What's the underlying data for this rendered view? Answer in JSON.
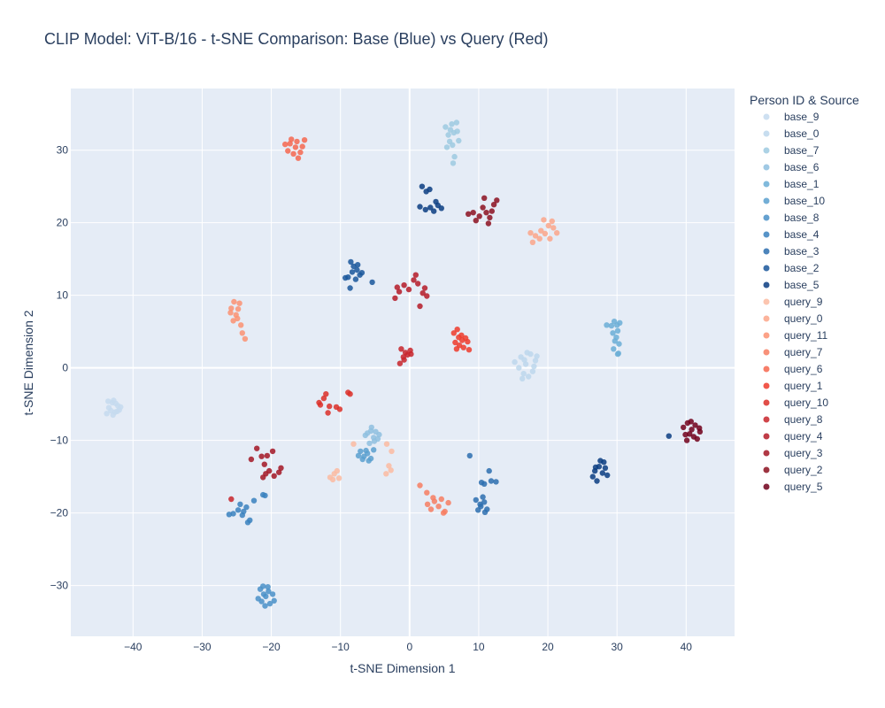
{
  "chart_data": {
    "type": "scatter",
    "title": "CLIP Model: ViT-B/16 - t-SNE Comparison: Base (Blue) vs Query (Red)",
    "xlabel": "t-SNE Dimension 1",
    "ylabel": "t-SNE Dimension 2",
    "xlim": [
      -49,
      47
    ],
    "ylim": [
      -37,
      38.5
    ],
    "xticks": [
      -40,
      -30,
      -20,
      -10,
      0,
      10,
      20,
      30,
      40
    ],
    "xtick_labels": [
      "−40",
      "−30",
      "−20",
      "−10",
      "0",
      "10",
      "20",
      "30",
      "40"
    ],
    "yticks": [
      -30,
      -20,
      -10,
      0,
      10,
      20,
      30
    ],
    "ytick_labels": [
      "−30",
      "−20",
      "−10",
      "0",
      "10",
      "20",
      "30"
    ],
    "grid": true,
    "plot_bg": "#e5ecf6",
    "legend_title": "Person ID & Source",
    "legend_position": "right",
    "series": [
      {
        "name": "base_9",
        "color": "#c6dbef",
        "points": [
          [
            -43.5,
            -5.5
          ],
          [
            -43,
            -4.8
          ],
          [
            -42.6,
            -6.1
          ],
          [
            -42.2,
            -5.2
          ],
          [
            -43.8,
            -6.3
          ],
          [
            -42.8,
            -4.5
          ],
          [
            -42,
            -5.8
          ],
          [
            -43.2,
            -5.9
          ],
          [
            -42.5,
            -4.9
          ],
          [
            -41.8,
            -5.4
          ],
          [
            -43.6,
            -4.6
          ],
          [
            -42.9,
            -6.5
          ],
          [
            -42.3,
            -6
          ]
        ]
      },
      {
        "name": "base_0",
        "color": "#bdd7ec",
        "points": [
          [
            15.2,
            0.8
          ],
          [
            16.1,
            1.5
          ],
          [
            16.8,
            0.5
          ],
          [
            17.5,
            1.9
          ],
          [
            18,
            0.2
          ],
          [
            16.5,
            -0.8
          ],
          [
            17.2,
            -1.2
          ],
          [
            18.2,
            1
          ],
          [
            15.8,
            0
          ],
          [
            17,
            2.1
          ],
          [
            16.3,
            -1.5
          ],
          [
            17.8,
            -0.5
          ],
          [
            18.4,
            1.6
          ],
          [
            16.6,
            1.1
          ]
        ]
      },
      {
        "name": "base_7",
        "color": "#9ecae1",
        "points": [
          [
            5.2,
            33.2
          ],
          [
            5.6,
            32.1
          ],
          [
            6.1,
            33.6
          ],
          [
            5.8,
            31.2
          ],
          [
            6.4,
            32.4
          ],
          [
            6.9,
            32.6
          ],
          [
            7.1,
            31.3
          ],
          [
            6.2,
            30.7
          ],
          [
            6.5,
            29.1
          ],
          [
            6.3,
            28.2
          ],
          [
            5.4,
            30.4
          ],
          [
            6.8,
            33.8
          ],
          [
            5.9,
            32.8
          ]
        ]
      },
      {
        "name": "base_6",
        "color": "#8fbfdf",
        "points": [
          [
            -5.5,
            -8.2
          ],
          [
            -6.1,
            -9
          ],
          [
            -5.2,
            -9.6
          ],
          [
            -4.6,
            -9.8
          ],
          [
            -5.8,
            -10.4
          ],
          [
            -4.9,
            -8.8
          ],
          [
            -6.4,
            -9.3
          ],
          [
            -5.1,
            -10.1
          ],
          [
            -4.4,
            -9.2
          ],
          [
            -5.6,
            -8.7
          ]
        ]
      },
      {
        "name": "base_1",
        "color": "#6baed6",
        "points": [
          [
            29.2,
            5.8
          ],
          [
            29.6,
            6.4
          ],
          [
            30.1,
            5.1
          ],
          [
            29.9,
            4.2
          ],
          [
            30.3,
            3.3
          ],
          [
            29.5,
            2.6
          ],
          [
            30.2,
            2
          ],
          [
            29.4,
            4.8
          ],
          [
            30,
            5.9
          ],
          [
            30.4,
            6.2
          ],
          [
            28.5,
            5.9
          ],
          [
            29.7,
            3.7
          ],
          [
            30.1,
            1.9
          ]
        ]
      },
      {
        "name": "base_10",
        "color": "#5aa0cf",
        "points": [
          [
            -7.1,
            -11.5
          ],
          [
            -6.6,
            -12.2
          ],
          [
            -6.1,
            -11.8
          ],
          [
            -5.6,
            -12.5
          ],
          [
            -7.4,
            -12.1
          ],
          [
            -5.2,
            -11.3
          ],
          [
            -6.8,
            -12.6
          ],
          [
            -6.3,
            -11.4
          ],
          [
            -5.9,
            -12.8
          ]
        ]
      },
      {
        "name": "base_8",
        "color": "#4a90c8",
        "points": [
          [
            -21.6,
            -30.5
          ],
          [
            -21.1,
            -31.2
          ],
          [
            -20.5,
            -30.2
          ],
          [
            -21.9,
            -31.8
          ],
          [
            -20.2,
            -32.5
          ],
          [
            -20.8,
            -31.5
          ],
          [
            -21.4,
            -32.2
          ],
          [
            -19.8,
            -31.2
          ],
          [
            -20.4,
            -30.8
          ],
          [
            -21.2,
            -30.1
          ],
          [
            -19.6,
            -32.1
          ],
          [
            -20.9,
            -32.8
          ]
        ]
      },
      {
        "name": "base_4",
        "color": "#3a81be",
        "points": [
          [
            -25.5,
            -20.1
          ],
          [
            -24.8,
            -19.6
          ],
          [
            -24.2,
            -20.3
          ],
          [
            -23.6,
            -19.2
          ],
          [
            -24.5,
            -18.8
          ],
          [
            -22.5,
            -18.3
          ],
          [
            -23.1,
            -21
          ],
          [
            -23.4,
            -21.3
          ],
          [
            -21.2,
            -17.5
          ],
          [
            -20.9,
            -17.6
          ],
          [
            -26.1,
            -20.2
          ],
          [
            -24,
            -19.8
          ]
        ]
      },
      {
        "name": "base_3",
        "color": "#2d6faf",
        "points": [
          [
            9.6,
            -18.2
          ],
          [
            10.3,
            -19.1
          ],
          [
            10.8,
            -18.5
          ],
          [
            11.2,
            -19.5
          ],
          [
            9.9,
            -19.6
          ],
          [
            10.6,
            -17.8
          ],
          [
            10.2,
            -18.8
          ],
          [
            11.5,
            -14.2
          ],
          [
            12.5,
            -15.7
          ],
          [
            10.8,
            -16
          ],
          [
            10.4,
            -15.8
          ],
          [
            8.7,
            -12.1
          ],
          [
            11.8,
            -15.6
          ],
          [
            10.9,
            -19.9
          ]
        ]
      },
      {
        "name": "base_2",
        "color": "#1a579b",
        "points": [
          [
            -8.5,
            14.6
          ],
          [
            -8.1,
            14
          ],
          [
            -7.6,
            13.5
          ],
          [
            -7.2,
            12.8
          ],
          [
            -8.9,
            12.5
          ],
          [
            -9.3,
            12.4
          ],
          [
            -7.8,
            12.2
          ],
          [
            -8.3,
            13.2
          ],
          [
            -6.9,
            13.1
          ],
          [
            -8.6,
            11
          ],
          [
            -5.4,
            11.8
          ],
          [
            -7.5,
            14.2
          ]
        ]
      },
      {
        "name": "base_5",
        "color": "#0b3d81",
        "points": [
          [
            1.8,
            25
          ],
          [
            2.4,
            24.3
          ],
          [
            2.9,
            24.6
          ],
          [
            1.5,
            22.2
          ],
          [
            2.3,
            21.8
          ],
          [
            3,
            22.1
          ],
          [
            3.5,
            21.6
          ],
          [
            4.1,
            22.4
          ],
          [
            4.6,
            22
          ],
          [
            3.8,
            22.9
          ],
          [
            26.8,
            -14.2
          ],
          [
            27.4,
            -13.6
          ],
          [
            27.9,
            -14.5
          ],
          [
            28.3,
            -13.8
          ],
          [
            26.5,
            -15
          ],
          [
            27.1,
            -15.6
          ],
          [
            28.1,
            -13
          ],
          [
            28.6,
            -14.8
          ],
          [
            27.6,
            -12.8
          ],
          [
            26.9,
            -13.7
          ],
          [
            37.5,
            -9.4
          ]
        ]
      },
      {
        "name": "query_9",
        "color": "#fcbba1",
        "points": [
          [
            -11.5,
            -15.1
          ],
          [
            -10.9,
            -14.6
          ],
          [
            -10.2,
            -15.2
          ],
          [
            -11.1,
            -15.4
          ],
          [
            -10.5,
            -14.2
          ],
          [
            -8.1,
            -10.5
          ],
          [
            -3.3,
            -10.5
          ],
          [
            -2.6,
            -11.5
          ],
          [
            -3,
            -13.5
          ],
          [
            -3.4,
            -14.6
          ],
          [
            -2.7,
            -14.1
          ]
        ]
      },
      {
        "name": "query_0",
        "color": "#fca689",
        "points": [
          [
            19.4,
            20.4
          ],
          [
            20.1,
            19.6
          ],
          [
            20.8,
            19.3
          ],
          [
            21.3,
            18.6
          ],
          [
            19,
            18.9
          ],
          [
            18.2,
            18.2
          ],
          [
            17.8,
            17.3
          ],
          [
            18.8,
            17.8
          ],
          [
            19.6,
            18.5
          ],
          [
            20.3,
            17.8
          ],
          [
            17.5,
            18.6
          ],
          [
            20.6,
            20.2
          ]
        ]
      },
      {
        "name": "query_11",
        "color": "#fc9272",
        "points": [
          [
            -25.4,
            9.1
          ],
          [
            -24.6,
            8.9
          ],
          [
            -24.8,
            8.1
          ],
          [
            -25.8,
            8.2
          ],
          [
            -25.1,
            7.3
          ],
          [
            -24.9,
            6.8
          ],
          [
            -25.5,
            6.5
          ],
          [
            -24.4,
            5.9
          ],
          [
            -24.2,
            4.8
          ],
          [
            -23.8,
            4
          ],
          [
            -25.9,
            7.6
          ]
        ]
      },
      {
        "name": "query_7",
        "color": "#f77e62",
        "points": [
          [
            1.5,
            -16.2
          ],
          [
            2.5,
            -17.2
          ],
          [
            2.6,
            -18.8
          ],
          [
            3.1,
            -19.5
          ],
          [
            3.6,
            -18.4
          ],
          [
            4.2,
            -19.1
          ],
          [
            4.6,
            -18.1
          ],
          [
            5.1,
            -19.8
          ],
          [
            5.6,
            -18.6
          ],
          [
            4.9,
            -20
          ],
          [
            3.4,
            -17.9
          ]
        ]
      },
      {
        "name": "query_6",
        "color": "#f6674f",
        "points": [
          [
            -18,
            30.8
          ],
          [
            -17.1,
            31.5
          ],
          [
            -16.3,
            31.2
          ],
          [
            -15.5,
            30.5
          ],
          [
            -17.6,
            29.9
          ],
          [
            -16.8,
            29.5
          ],
          [
            -15.8,
            29.7
          ],
          [
            -16.5,
            30.4
          ],
          [
            -15.2,
            31.4
          ],
          [
            -17.3,
            30.9
          ],
          [
            -16.1,
            28.9
          ]
        ]
      },
      {
        "name": "query_1",
        "color": "#ef3b2c",
        "points": [
          [
            6.4,
            4.8
          ],
          [
            6.9,
            5.3
          ],
          [
            7.5,
            4.5
          ],
          [
            8.1,
            4.1
          ],
          [
            6.6,
            3.5
          ],
          [
            7.2,
            3.1
          ],
          [
            7.8,
            2.8
          ],
          [
            6.8,
            2.6
          ],
          [
            7.6,
            3.8
          ],
          [
            8.4,
            3.6
          ],
          [
            7.1,
            4.2
          ],
          [
            8.6,
            2.5
          ]
        ]
      },
      {
        "name": "query_10",
        "color": "#dc2f28",
        "points": [
          [
            -13.1,
            -4.8
          ],
          [
            -12.4,
            -4.2
          ],
          [
            -12.1,
            -3.6
          ],
          [
            -11.6,
            -5.3
          ],
          [
            -11.8,
            -6.2
          ],
          [
            -10.6,
            -5.4
          ],
          [
            -10.1,
            -5.7
          ],
          [
            -8.9,
            -3.4
          ],
          [
            -8.6,
            -3.6
          ],
          [
            -12.9,
            -5.1
          ]
        ]
      },
      {
        "name": "query_8",
        "color": "#c8252a",
        "points": [
          [
            -1.2,
            2.6
          ],
          [
            -0.6,
            2.1
          ],
          [
            0.1,
            2.4
          ],
          [
            -0.9,
            1.5
          ],
          [
            -0.3,
            1.8
          ],
          [
            -1.4,
            0.6
          ],
          [
            -0.8,
            1.1
          ],
          [
            0.2,
            1.9
          ],
          [
            -25.8,
            -18.1
          ]
        ]
      },
      {
        "name": "query_4",
        "color": "#b51b28",
        "points": [
          [
            -2.1,
            9.6
          ],
          [
            -1.5,
            10.5
          ],
          [
            -0.8,
            11.4
          ],
          [
            -0.1,
            10.8
          ],
          [
            0.6,
            12.1
          ],
          [
            1.2,
            11.6
          ],
          [
            1.9,
            10.3
          ],
          [
            2.5,
            9.9
          ],
          [
            1.5,
            8.5
          ],
          [
            0.9,
            12.8
          ],
          [
            -1.8,
            11.1
          ],
          [
            2.2,
            11
          ]
        ]
      },
      {
        "name": "query_3",
        "color": "#a31625",
        "points": [
          [
            -22.1,
            -11.1
          ],
          [
            -21.4,
            -12.2
          ],
          [
            -20.6,
            -12.1
          ],
          [
            -19.8,
            -11.5
          ],
          [
            -22.9,
            -12.6
          ],
          [
            -21,
            -13.3
          ],
          [
            -20.3,
            -14.2
          ],
          [
            -19.6,
            -14.9
          ],
          [
            -21.2,
            -15.1
          ],
          [
            -18.6,
            -13.8
          ],
          [
            -18.9,
            -14.4
          ],
          [
            -20.8,
            -14.6
          ]
        ]
      },
      {
        "name": "query_2",
        "color": "#8c1120",
        "points": [
          [
            8.5,
            21.2
          ],
          [
            9.2,
            21.4
          ],
          [
            9.6,
            20.3
          ],
          [
            10.1,
            20.9
          ],
          [
            10.6,
            22.1
          ],
          [
            11.1,
            21.4
          ],
          [
            11.6,
            20.7
          ],
          [
            11.4,
            19.9
          ],
          [
            12.2,
            22.5
          ],
          [
            12.6,
            23.1
          ],
          [
            10.8,
            23.4
          ],
          [
            11.9,
            21.6
          ]
        ]
      },
      {
        "name": "query_5",
        "color": "#71001b",
        "points": [
          [
            39.6,
            -8.2
          ],
          [
            40.2,
            -7.6
          ],
          [
            40.8,
            -8.5
          ],
          [
            41.3,
            -7.9
          ],
          [
            41.9,
            -8.3
          ],
          [
            40.5,
            -9.1
          ],
          [
            41.1,
            -9.5
          ],
          [
            39.9,
            -9.2
          ],
          [
            41.6,
            -9.8
          ],
          [
            40.1,
            -10
          ],
          [
            42,
            -8.8
          ],
          [
            40.7,
            -7.4
          ]
        ]
      }
    ]
  }
}
